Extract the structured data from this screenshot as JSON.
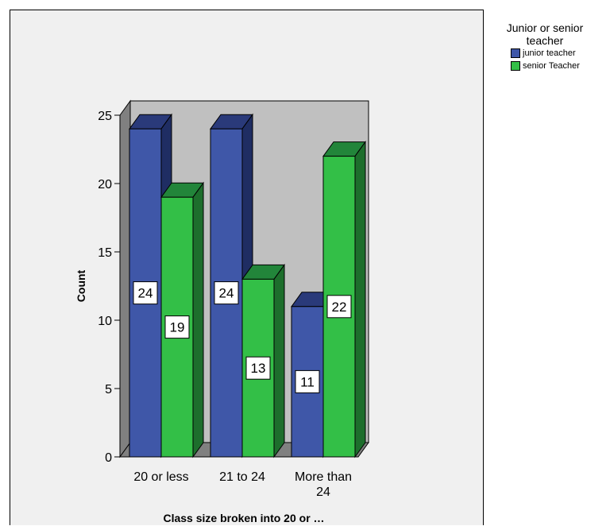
{
  "chart_data": {
    "type": "bar",
    "title": "",
    "xlabel": "Class size broken into 20 or …",
    "ylabel": "Count",
    "categories": [
      "20 or less",
      "21 to 24",
      "More than 24"
    ],
    "category_lines": [
      [
        "20 or less"
      ],
      [
        "21 to 24"
      ],
      [
        "More than",
        "24"
      ]
    ],
    "series": [
      {
        "name": "junior teacher",
        "values": [
          24,
          24,
          11
        ],
        "color": "#3f57a8",
        "top_color": "#2a3a7a",
        "side_color": "#1f2d63"
      },
      {
        "name": "senior Teacher",
        "values": [
          19,
          13,
          22
        ],
        "color": "#33bf47",
        "top_color": "#22853a",
        "side_color": "#1d6e2c"
      }
    ],
    "yticks": [
      0,
      5,
      10,
      15,
      20,
      25
    ],
    "ylim": [
      0,
      25
    ],
    "grid": false,
    "data_labels": true,
    "legend": {
      "title": "Junior or senior teacher",
      "placement": "right"
    },
    "back_wall_color": "#c0c0c0",
    "floor_color": "#808080",
    "panel_background": "#f0f0f0"
  }
}
